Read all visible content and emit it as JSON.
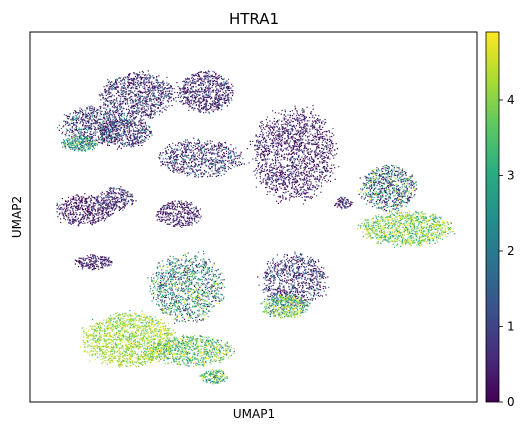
{
  "chart_data": {
    "type": "scatter",
    "title": "HTRA1",
    "xlabel": "UMAP1",
    "ylabel": "UMAP2",
    "x_ticks_shown": false,
    "y_ticks_shown": false,
    "grid": false,
    "colorbar": {
      "colormap": "viridis",
      "min": 0,
      "max": 4.9,
      "ticks": [
        {
          "value": 0,
          "label": "0"
        },
        {
          "value": 1,
          "label": "1"
        },
        {
          "value": 2,
          "label": "2"
        },
        {
          "value": 3,
          "label": "3"
        },
        {
          "value": 4,
          "label": "4"
        }
      ]
    },
    "clusters": [
      {
        "cx": 0.24,
        "cy": 0.83,
        "rx": 0.08,
        "ry": 0.06,
        "n": 900,
        "expr_mean": 0.6,
        "expr_sd": 0.8
      },
      {
        "cx": 0.39,
        "cy": 0.84,
        "rx": 0.06,
        "ry": 0.055,
        "n": 700,
        "expr_mean": 0.5,
        "expr_sd": 0.7
      },
      {
        "cx": 0.14,
        "cy": 0.75,
        "rx": 0.07,
        "ry": 0.05,
        "n": 600,
        "expr_mean": 0.9,
        "expr_sd": 1.2
      },
      {
        "cx": 0.11,
        "cy": 0.7,
        "rx": 0.04,
        "ry": 0.02,
        "n": 250,
        "expr_mean": 2.6,
        "expr_sd": 0.9
      },
      {
        "cx": 0.21,
        "cy": 0.73,
        "rx": 0.06,
        "ry": 0.04,
        "n": 500,
        "expr_mean": 0.7,
        "expr_sd": 1.0
      },
      {
        "cx": 0.38,
        "cy": 0.66,
        "rx": 0.09,
        "ry": 0.05,
        "n": 700,
        "expr_mean": 0.7,
        "expr_sd": 1.0
      },
      {
        "cx": 0.59,
        "cy": 0.67,
        "rx": 0.09,
        "ry": 0.12,
        "n": 1600,
        "expr_mean": 0.35,
        "expr_sd": 0.6
      },
      {
        "cx": 0.7,
        "cy": 0.54,
        "rx": 0.02,
        "ry": 0.015,
        "n": 80,
        "expr_mean": 0.5,
        "expr_sd": 0.6
      },
      {
        "cx": 0.12,
        "cy": 0.52,
        "rx": 0.06,
        "ry": 0.04,
        "n": 500,
        "expr_mean": 0.3,
        "expr_sd": 0.5
      },
      {
        "cx": 0.19,
        "cy": 0.55,
        "rx": 0.04,
        "ry": 0.03,
        "n": 250,
        "expr_mean": 0.5,
        "expr_sd": 0.7
      },
      {
        "cx": 0.33,
        "cy": 0.51,
        "rx": 0.05,
        "ry": 0.035,
        "n": 350,
        "expr_mean": 0.4,
        "expr_sd": 0.6
      },
      {
        "cx": 0.14,
        "cy": 0.38,
        "rx": 0.04,
        "ry": 0.02,
        "n": 200,
        "expr_mean": 0.4,
        "expr_sd": 0.6
      },
      {
        "cx": 0.8,
        "cy": 0.58,
        "rx": 0.06,
        "ry": 0.06,
        "n": 700,
        "expr_mean": 1.8,
        "expr_sd": 1.5
      },
      {
        "cx": 0.84,
        "cy": 0.47,
        "rx": 0.1,
        "ry": 0.045,
        "n": 1000,
        "expr_mean": 3.9,
        "expr_sd": 0.8
      },
      {
        "cx": 0.35,
        "cy": 0.31,
        "rx": 0.08,
        "ry": 0.09,
        "n": 1100,
        "expr_mean": 2.4,
        "expr_sd": 1.4
      },
      {
        "cx": 0.59,
        "cy": 0.33,
        "rx": 0.07,
        "ry": 0.07,
        "n": 800,
        "expr_mean": 0.7,
        "expr_sd": 0.9
      },
      {
        "cx": 0.57,
        "cy": 0.26,
        "rx": 0.05,
        "ry": 0.03,
        "n": 400,
        "expr_mean": 3.5,
        "expr_sd": 1.0
      },
      {
        "cx": 0.22,
        "cy": 0.17,
        "rx": 0.1,
        "ry": 0.07,
        "n": 1500,
        "expr_mean": 4.2,
        "expr_sd": 0.5
      },
      {
        "cx": 0.36,
        "cy": 0.14,
        "rx": 0.09,
        "ry": 0.04,
        "n": 700,
        "expr_mean": 3.6,
        "expr_sd": 0.9
      },
      {
        "cx": 0.41,
        "cy": 0.07,
        "rx": 0.03,
        "ry": 0.02,
        "n": 150,
        "expr_mean": 3.2,
        "expr_sd": 1.0
      }
    ]
  }
}
